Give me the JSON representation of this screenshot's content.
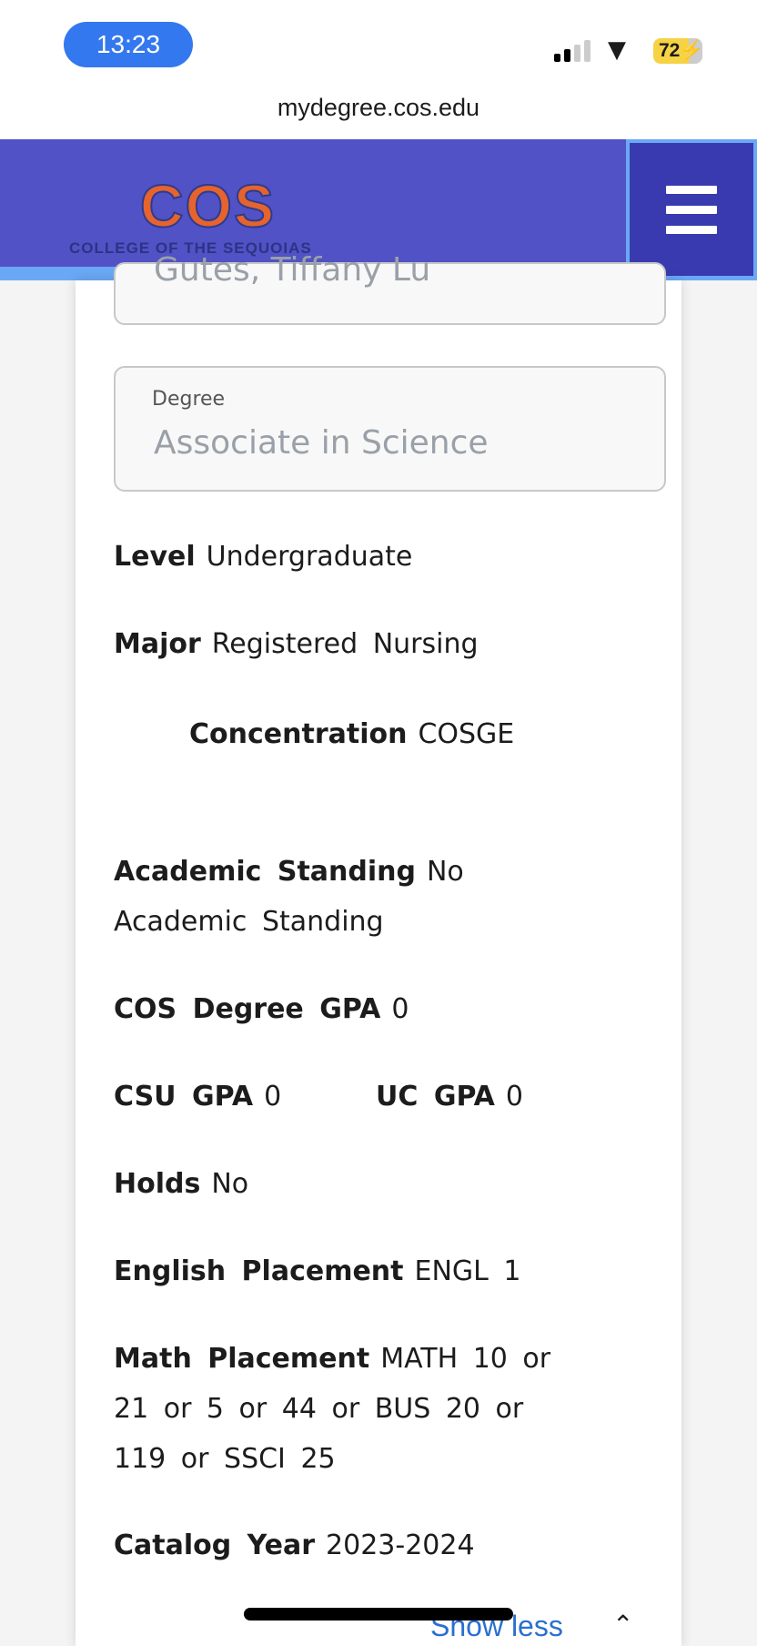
{
  "status_bar": {
    "time": "13:23",
    "battery": "72"
  },
  "browser": {
    "url": "mydegree.cos.edu"
  },
  "header": {
    "logo_text": "COS",
    "logo_subtitle": "COLLEGE OF THE SEQUOIAS",
    "brand_color": "#5052c6",
    "accent_color": "#e6632e"
  },
  "student": {
    "name_partial": "Gutes, Tiffany Lu"
  },
  "degree": {
    "label": "Degree",
    "value": "Associate in Science"
  },
  "details": [
    {
      "label": "Level",
      "value": "Undergraduate"
    },
    {
      "label": "Major",
      "value": "Registered Nursing"
    },
    {
      "label": "Concentration",
      "value": "COSGE"
    },
    {
      "label": "Academic Standing",
      "value": "No Academic Standing"
    },
    {
      "label": "COS Degree GPA",
      "value": "0"
    },
    {
      "label": "CSU GPA",
      "value": "0"
    },
    {
      "label": "UC GPA",
      "value": "0"
    },
    {
      "label": "Holds",
      "value": "No"
    },
    {
      "label": "English Placement",
      "value": "ENGL 1"
    },
    {
      "label": "Math Placement",
      "value": "MATH 10 or 21 or 5 or 44 or BUS 20 or 119 or SSCI 25"
    },
    {
      "label": "Catalog Year",
      "value": "2023-2024"
    }
  ],
  "show_less": "Show less"
}
